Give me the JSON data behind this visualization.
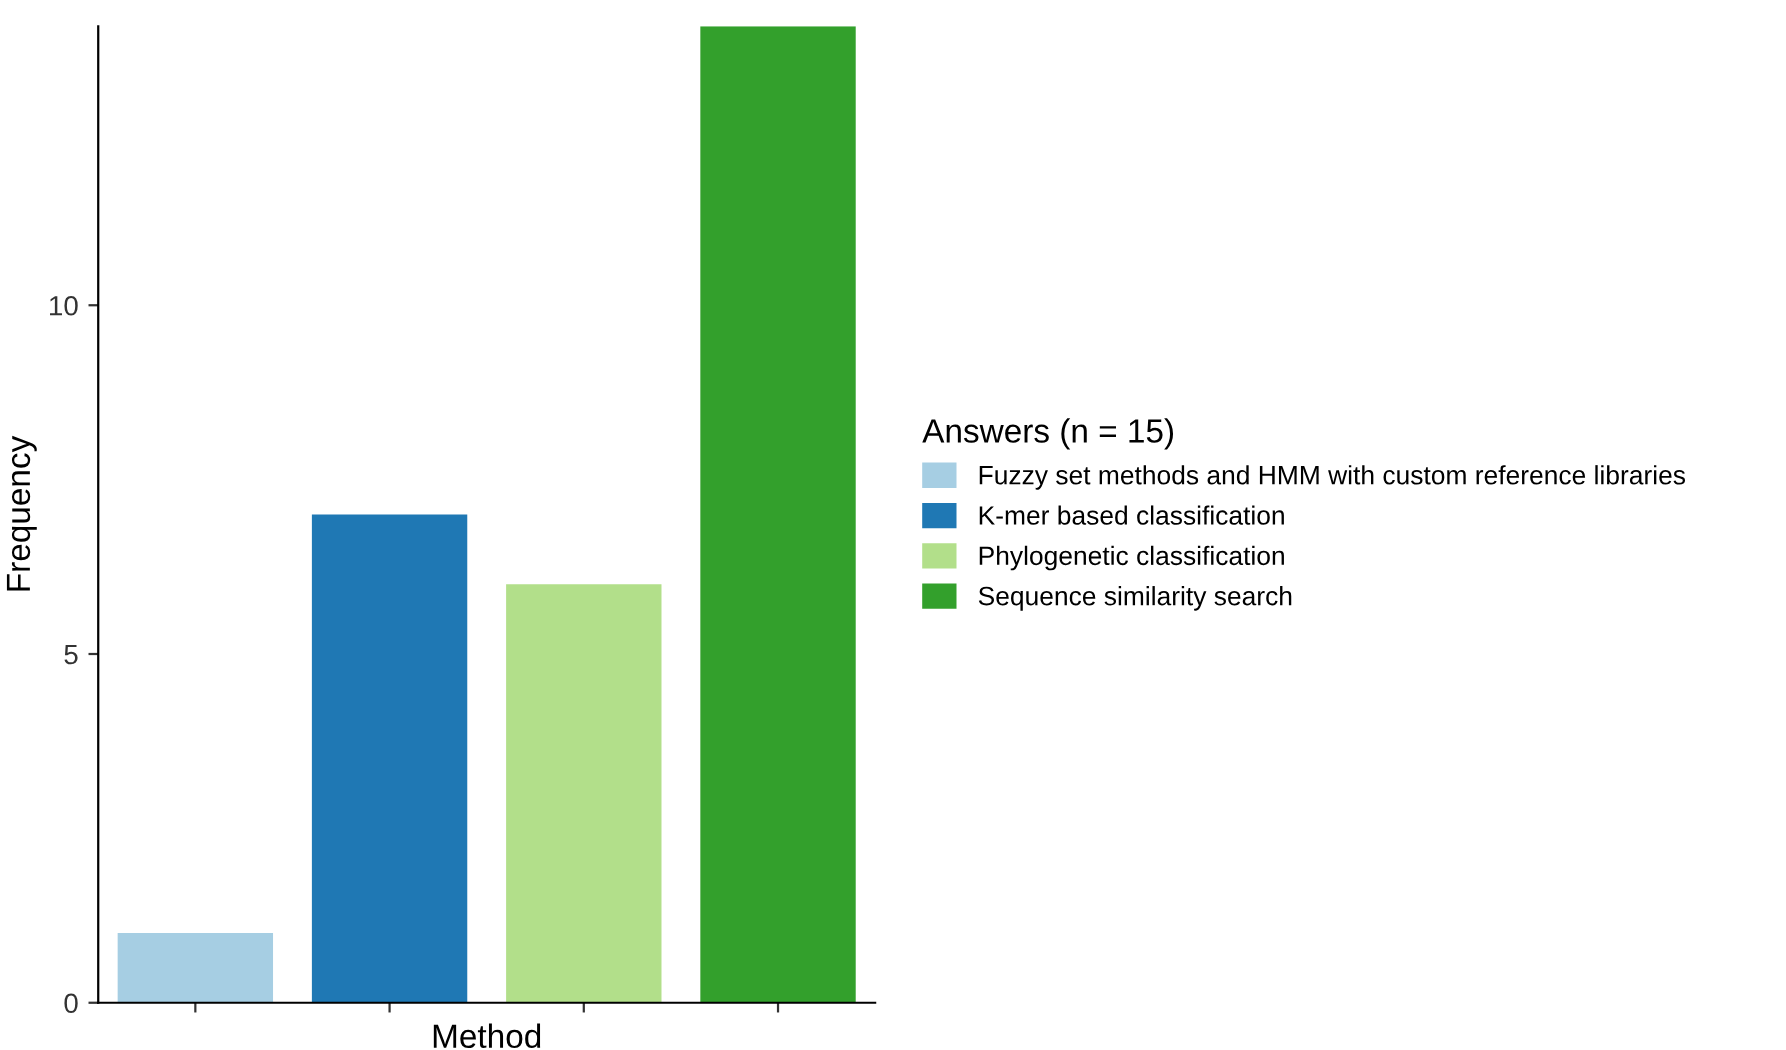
{
  "chart_data": {
    "type": "bar",
    "xlabel": "Method",
    "ylabel": "Frequency",
    "legend_title": "Answers (n = 15)",
    "categories": [
      null,
      null,
      null,
      null
    ],
    "series": [
      {
        "name": "Fuzzy set methods and HMM with custom reference libraries",
        "color": "#a6cee3",
        "values": [
          1,
          null,
          null,
          null
        ]
      },
      {
        "name": "K-mer based classification",
        "color": "#1f78b4",
        "values": [
          null,
          7,
          null,
          null
        ]
      },
      {
        "name": "Phylogenetic classification",
        "color": "#b2df8a",
        "values": [
          null,
          null,
          6,
          null
        ]
      },
      {
        "name": "Sequence similarity search",
        "color": "#33a02c",
        "values": [
          null,
          null,
          null,
          14
        ]
      }
    ],
    "ylim": [
      0,
      14
    ],
    "yticks": [
      0,
      5,
      10
    ],
    "grid": false,
    "legend": "right",
    "tick_labels": "y"
  }
}
